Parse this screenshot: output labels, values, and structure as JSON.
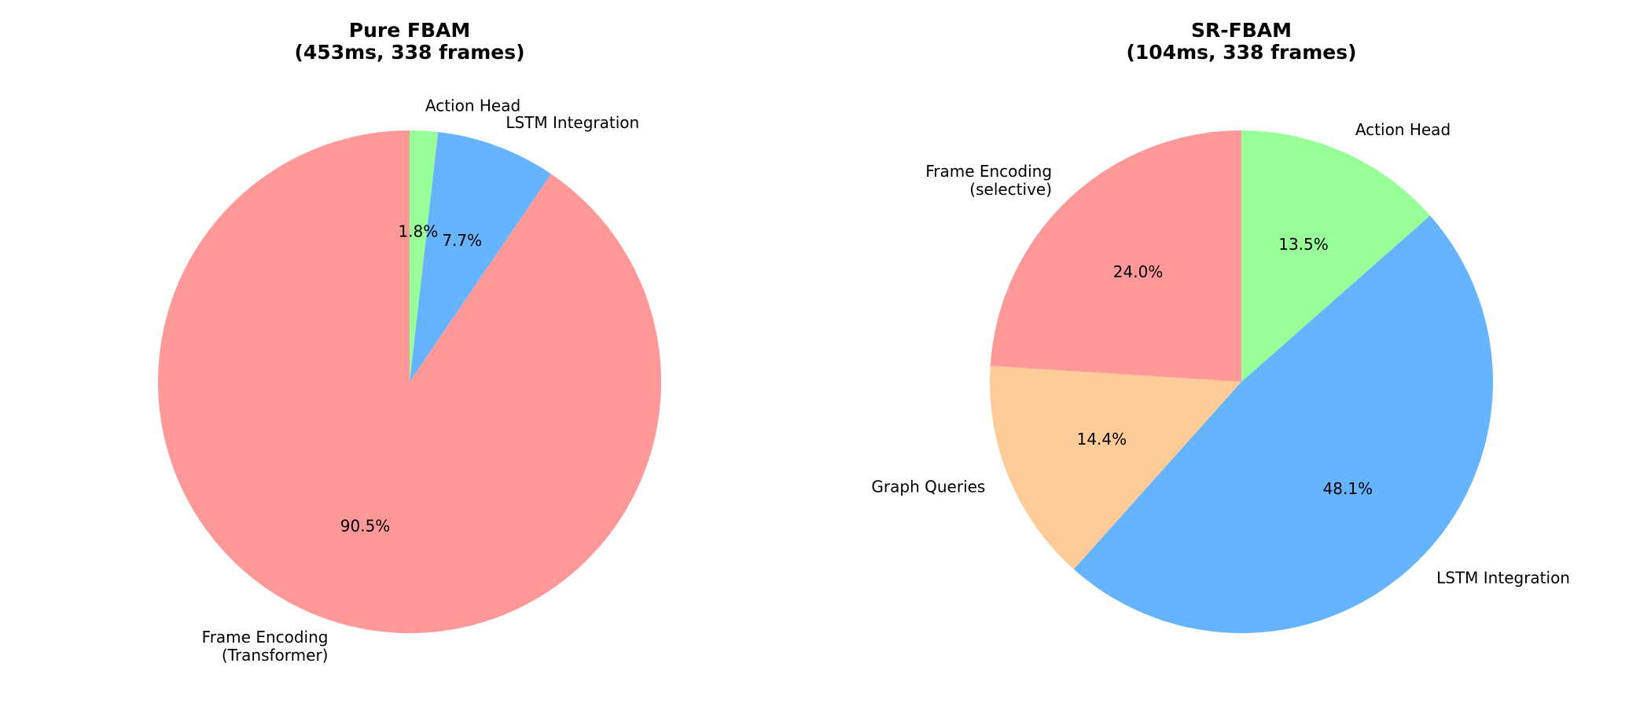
{
  "chart_data": [
    {
      "type": "pie",
      "title_line1": "Pure FBAM",
      "title_line2": "(453ms, 338 frames)",
      "slices": [
        {
          "label_lines": [
            "Frame Encoding",
            "(Transformer)"
          ],
          "value": 90.5,
          "pct_label": "90.5%",
          "color": "#ff9999"
        },
        {
          "label_lines": [
            "LSTM Integration"
          ],
          "value": 7.7,
          "pct_label": "7.7%",
          "color": "#66b3ff"
        },
        {
          "label_lines": [
            "Action Head"
          ],
          "value": 1.8,
          "pct_label": "1.8%",
          "color": "#99ff99"
        }
      ],
      "start_angle_deg": 90,
      "direction": "counterclockwise"
    },
    {
      "type": "pie",
      "title_line1": "SR-FBAM",
      "title_line2": "(104ms, 338 frames)",
      "slices": [
        {
          "label_lines": [
            "Frame Encoding",
            "(selective)"
          ],
          "value": 24.0,
          "pct_label": "24.0%",
          "color": "#ff9999"
        },
        {
          "label_lines": [
            "Graph Queries"
          ],
          "value": 14.4,
          "pct_label": "14.4%",
          "color": "#ffcc99"
        },
        {
          "label_lines": [
            "LSTM Integration"
          ],
          "value": 48.1,
          "pct_label": "48.1%",
          "color": "#66b3ff"
        },
        {
          "label_lines": [
            "Action Head"
          ],
          "value": 13.5,
          "pct_label": "13.5%",
          "color": "#99ff99"
        }
      ],
      "start_angle_deg": 90,
      "direction": "counterclockwise"
    }
  ]
}
